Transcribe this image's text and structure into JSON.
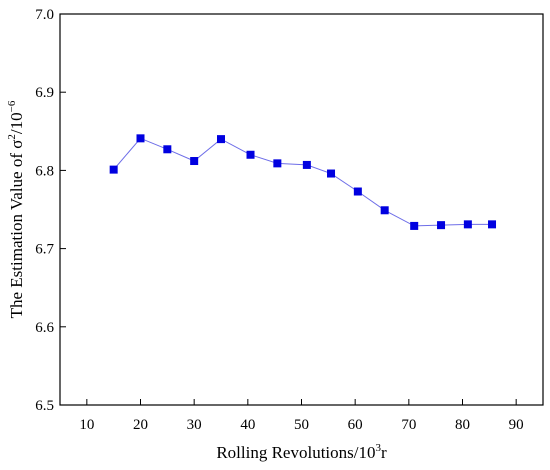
{
  "chart_data": {
    "type": "line",
    "title": "",
    "xlabel": "Rolling Revolutions/10",
    "xlabel_sup": "3",
    "xlabel_suffix": "r",
    "ylabel": "The Estimation Value of σ",
    "ylabel_sup": "2",
    "ylabel_mid": "/10",
    "ylabel_sup2": "−6",
    "xlim": [
      5,
      95
    ],
    "ylim": [
      6.5,
      7.0
    ],
    "xticks": [
      10,
      20,
      30,
      40,
      50,
      60,
      70,
      80,
      90
    ],
    "yticks": [
      6.5,
      6.6,
      6.7,
      6.8,
      6.9,
      7.0
    ],
    "xtick_labels": [
      "10",
      "20",
      "30",
      "40",
      "50",
      "60",
      "70",
      "80",
      "90"
    ],
    "ytick_labels": [
      "6.5",
      "6.6",
      "6.7",
      "6.8",
      "6.9",
      "7.0"
    ],
    "grid": false,
    "legend": "none",
    "marker": "square",
    "color": "#0000e0",
    "line_color": "#6e6ee8",
    "series": [
      {
        "x": [
          15,
          20,
          25,
          30,
          35,
          40.5,
          45.5,
          51,
          55.5,
          60.5,
          65.5,
          71,
          76,
          81,
          85.5
        ],
        "values": [
          6.801,
          6.841,
          6.827,
          6.812,
          6.84,
          6.82,
          6.809,
          6.807,
          6.796,
          6.773,
          6.749,
          6.729,
          6.73,
          6.731,
          6.731
        ]
      }
    ]
  }
}
